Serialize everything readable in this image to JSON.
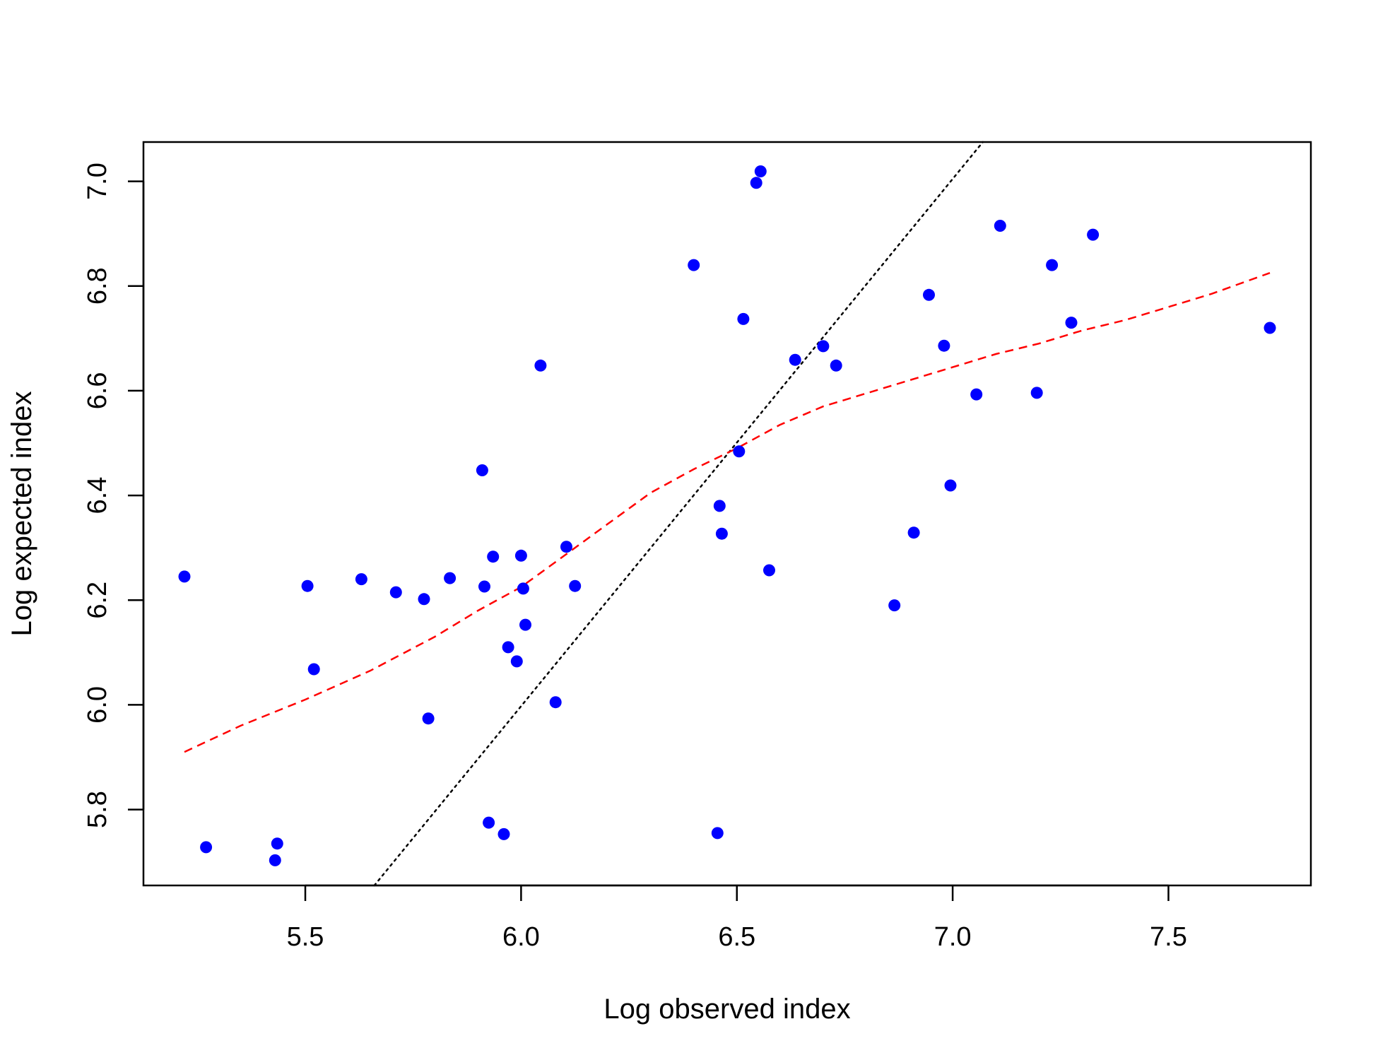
{
  "chart_data": {
    "type": "scatter",
    "xlabel": "Log observed index",
    "ylabel": "Log expected index",
    "xlim": [
      5.125,
      7.83
    ],
    "ylim": [
      5.655,
      7.075
    ],
    "x_ticks": [
      "5.5",
      "6.0",
      "6.5",
      "7.0",
      "7.5"
    ],
    "y_ticks": [
      "5.8",
      "6.0",
      "6.2",
      "6.4",
      "6.6",
      "6.8",
      "7.0"
    ],
    "grid": false,
    "legend": "none",
    "points": [
      {
        "x": 5.22,
        "y": 6.245
      },
      {
        "x": 5.27,
        "y": 5.728
      },
      {
        "x": 5.43,
        "y": 5.703
      },
      {
        "x": 5.435,
        "y": 5.735
      },
      {
        "x": 5.505,
        "y": 6.227
      },
      {
        "x": 5.52,
        "y": 6.068
      },
      {
        "x": 5.63,
        "y": 6.24
      },
      {
        "x": 5.71,
        "y": 6.215
      },
      {
        "x": 5.775,
        "y": 6.202
      },
      {
        "x": 5.785,
        "y": 5.974
      },
      {
        "x": 5.835,
        "y": 6.242
      },
      {
        "x": 5.91,
        "y": 6.448
      },
      {
        "x": 5.915,
        "y": 6.226
      },
      {
        "x": 5.925,
        "y": 5.775
      },
      {
        "x": 5.935,
        "y": 6.283
      },
      {
        "x": 5.96,
        "y": 5.753
      },
      {
        "x": 5.97,
        "y": 6.11
      },
      {
        "x": 5.99,
        "y": 6.083
      },
      {
        "x": 6.0,
        "y": 6.285
      },
      {
        "x": 6.005,
        "y": 6.222
      },
      {
        "x": 6.01,
        "y": 6.153
      },
      {
        "x": 6.045,
        "y": 6.648
      },
      {
        "x": 6.08,
        "y": 6.005
      },
      {
        "x": 6.105,
        "y": 6.302
      },
      {
        "x": 6.125,
        "y": 6.227
      },
      {
        "x": 6.4,
        "y": 6.84
      },
      {
        "x": 6.455,
        "y": 5.755
      },
      {
        "x": 6.46,
        "y": 6.38
      },
      {
        "x": 6.465,
        "y": 6.327
      },
      {
        "x": 6.505,
        "y": 6.484
      },
      {
        "x": 6.515,
        "y": 6.737
      },
      {
        "x": 6.545,
        "y": 6.997
      },
      {
        "x": 6.555,
        "y": 7.019
      },
      {
        "x": 6.575,
        "y": 6.257
      },
      {
        "x": 6.635,
        "y": 6.659
      },
      {
        "x": 6.7,
        "y": 6.685
      },
      {
        "x": 6.73,
        "y": 6.648
      },
      {
        "x": 6.865,
        "y": 6.19
      },
      {
        "x": 6.91,
        "y": 6.329
      },
      {
        "x": 6.945,
        "y": 6.783
      },
      {
        "x": 6.98,
        "y": 6.686
      },
      {
        "x": 6.995,
        "y": 6.419
      },
      {
        "x": 7.055,
        "y": 6.593
      },
      {
        "x": 7.11,
        "y": 6.915
      },
      {
        "x": 7.195,
        "y": 6.596
      },
      {
        "x": 7.23,
        "y": 6.84
      },
      {
        "x": 7.275,
        "y": 6.73
      },
      {
        "x": 7.325,
        "y": 6.898
      },
      {
        "x": 7.735,
        "y": 6.72
      }
    ],
    "reference_line": {
      "x": [
        5.66,
        7.07
      ],
      "y": [
        5.655,
        7.075
      ]
    },
    "smooth_line": {
      "x": [
        5.22,
        5.35,
        5.5,
        5.65,
        5.8,
        5.9,
        6.0,
        6.1,
        6.2,
        6.3,
        6.4,
        6.5,
        6.6,
        6.7,
        6.8,
        6.9,
        7.0,
        7.1,
        7.2,
        7.3,
        7.4,
        7.5,
        7.6,
        7.735
      ],
      "y": [
        5.91,
        5.96,
        6.01,
        6.065,
        6.13,
        6.18,
        6.225,
        6.285,
        6.345,
        6.405,
        6.45,
        6.49,
        6.535,
        6.57,
        6.595,
        6.62,
        6.645,
        6.67,
        6.69,
        6.715,
        6.735,
        6.76,
        6.785,
        6.825
      ]
    },
    "colors": {
      "points": "#0000ff",
      "smooth": "#ff0000",
      "reference": "#000000"
    }
  }
}
